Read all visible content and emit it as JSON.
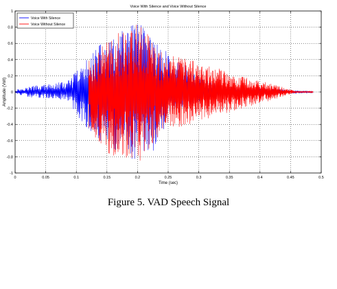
{
  "chart_data": {
    "type": "line",
    "title": "Voice With Silence and Voice Without Silence",
    "xlabel": "Time (sec)",
    "ylabel": "Amplitude (Volt)",
    "xlim": [
      0,
      0.5
    ],
    "ylim": [
      -1,
      1
    ],
    "xticks": [
      0,
      0.05,
      0.1,
      0.15,
      0.2,
      0.25,
      0.3,
      0.35,
      0.4,
      0.45,
      0.5
    ],
    "xtick_labels": [
      "0",
      "0.05",
      "0.1",
      "0.15",
      "0.2",
      "0.25",
      "0.3",
      "0.35",
      "0.4",
      "0.45",
      "0.5"
    ],
    "yticks": [
      -1,
      -0.8,
      -0.6,
      -0.4,
      -0.2,
      0,
      0.2,
      0.4,
      0.6,
      0.8,
      1
    ],
    "ytick_labels": [
      "-1",
      "-0.8",
      "-0.6",
      "-0.4",
      "-0.2",
      "0",
      "0.2",
      "0.4",
      "0.6",
      "0.8",
      "1"
    ],
    "grid": true,
    "legend_position": "top-left",
    "series": [
      {
        "name": "Voice With Silence",
        "color": "#0000ff",
        "envelope": {
          "x": [
            0,
            0.03,
            0.06,
            0.09,
            0.1,
            0.11,
            0.12,
            0.13,
            0.14,
            0.16,
            0.18,
            0.2,
            0.22,
            0.24,
            0.25,
            0.26,
            0.27,
            0.28,
            0.29,
            0.3,
            0.32,
            0.34,
            0.36,
            0.38,
            0.4,
            0.42,
            0.44,
            0.46,
            0.487
          ],
          "upper": [
            0.03,
            0.08,
            0.1,
            0.15,
            0.28,
            0.33,
            0.45,
            0.55,
            0.6,
            0.65,
            0.8,
            0.9,
            0.7,
            0.55,
            0.48,
            0.4,
            0.38,
            0.32,
            0.28,
            0.22,
            0.12,
            0.08,
            0.06,
            0.05,
            0.05,
            0.04,
            0.03,
            0.02,
            0.01
          ],
          "lower": [
            -0.03,
            -0.08,
            -0.08,
            -0.12,
            -0.3,
            -0.4,
            -0.45,
            -0.55,
            -0.62,
            -0.7,
            -0.8,
            -0.88,
            -0.8,
            -0.55,
            -0.3,
            -0.22,
            -0.2,
            -0.18,
            -0.15,
            -0.12,
            -0.08,
            -0.05,
            -0.04,
            -0.04,
            -0.03,
            -0.03,
            -0.02,
            -0.02,
            -0.01
          ]
        }
      },
      {
        "name": "Voice Without Silence",
        "color": "#ff0000",
        "envelope": {
          "x": [
            0.12,
            0.14,
            0.16,
            0.18,
            0.2,
            0.22,
            0.24,
            0.46,
            0.47,
            0.487
          ],
          "upper": [
            0.4,
            0.55,
            0.7,
            0.82,
            0.87,
            0.72,
            0.5,
            0.01,
            0.01,
            0.01
          ],
          "lower": [
            -0.45,
            -0.65,
            -0.82,
            -0.85,
            -0.88,
            -0.75,
            -0.5,
            -0.01,
            -0.01,
            -0.01
          ]
        }
      }
    ]
  },
  "caption": "Figure 5. VAD Speech Signal"
}
